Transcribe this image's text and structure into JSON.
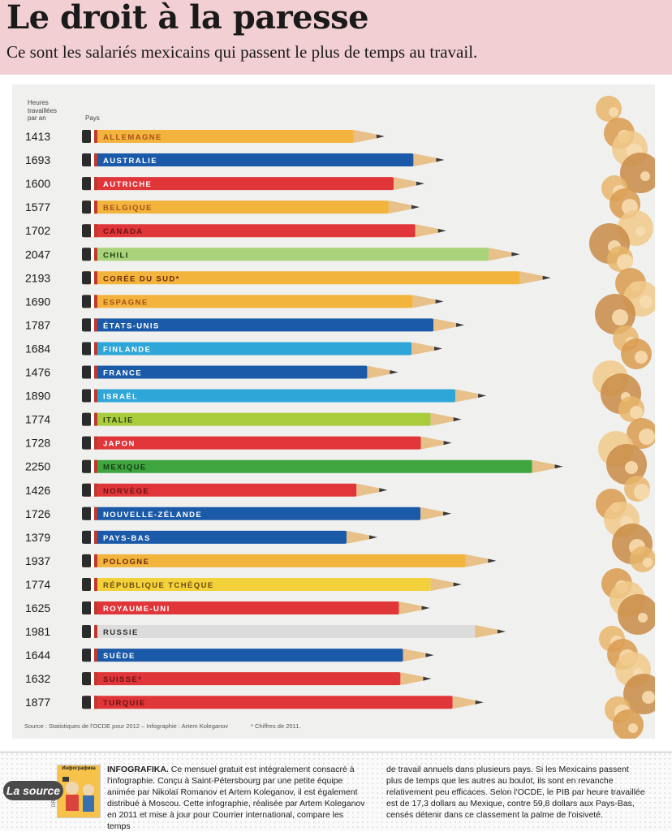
{
  "header": {
    "title": "Le droit à la paresse",
    "subtitle": "Ce sont les salariés mexicains qui passent le plus de temps au travail."
  },
  "chart_data": {
    "type": "bar",
    "title": "Le droit à la paresse",
    "subtitle": "Ce sont les salariés mexicains qui passent le plus de temps au travail.",
    "xlabel": "Heures travaillées par an",
    "ylabel": "Pays",
    "categories": [
      "ALLEMAGNE",
      "AUSTRALIE",
      "AUTRICHE",
      "BELGIQUE",
      "CANADA",
      "CHILI",
      "CORÉE DU SUD*",
      "ESPAGNE",
      "ÉTATS-UNIS",
      "FINLANDE",
      "FRANCE",
      "ISRAËL",
      "ITALIE",
      "JAPON",
      "MEXIQUE",
      "NORVÈGE",
      "NOUVELLE-ZÉLANDE",
      "PAYS-BAS",
      "POLOGNE",
      "RÉPUBLIQUE TCHÈQUE",
      "ROYAUME-UNI",
      "RUSSIE",
      "SUÈDE",
      "SUISSE*",
      "TURQUIE"
    ],
    "values": [
      1413,
      1693,
      1600,
      1577,
      1702,
      2047,
      2193,
      1690,
      1787,
      1684,
      1476,
      1890,
      1774,
      1728,
      2250,
      1426,
      1726,
      1379,
      1937,
      1774,
      1625,
      1981,
      1644,
      1632,
      1877
    ],
    "colors": [
      "#f2b43c",
      "#1a5aa8",
      "#e0363a",
      "#f2b43c",
      "#e0363a",
      "#a8d37a",
      "#f2b43c",
      "#f2b43c",
      "#1a5aa8",
      "#2ea6d8",
      "#1a5aa8",
      "#2ea6d8",
      "#a8cc3c",
      "#e0363a",
      "#3fa63f",
      "#e0363a",
      "#1a5aa8",
      "#1a5aa8",
      "#f2b43c",
      "#f2d13a",
      "#e0363a",
      "#dcdcdc",
      "#1a5aa8",
      "#e0363a",
      "#e0363a"
    ],
    "label_colors": [
      "#a6501a",
      "#ffffff",
      "#ffffff",
      "#a6501a",
      "#6b1414",
      "#1e3a14",
      "#6b2a10",
      "#a6501a",
      "#ffffff",
      "#ffffff",
      "#ffffff",
      "#ffffff",
      "#2c3a10",
      "#ffffff",
      "#153d15",
      "#6b1414",
      "#ffffff",
      "#ffffff",
      "#6b2a10",
      "#6b4a10",
      "#ffffff",
      "#333333",
      "#ffffff",
      "#6b1414",
      "#6b1414"
    ],
    "axis_header": [
      "Heures",
      "travaillées",
      "par an"
    ],
    "category_header": "Pays",
    "source": "Source : Statistiques de l'OCDE pour 2012 – Infographie : Artem Koleganov",
    "footnote": "* Chiffres de 2011."
  },
  "footer": {
    "badge": "La source",
    "thumb_title": "Инфографика",
    "credit": "DR",
    "lead": "INFOGRAFIKA.",
    "col1": "Ce mensuel gratuit est intégralement consacré à l'infographie. Conçu à Saint-Pétersbourg par une petite équipe animée par Nikolaï Romanov et Artem Koleganov, il est également distribué à Moscou. Cette infographie, réalisée par Artem Koleganov en 2011 et mise à jour pour Courrier international, compare les temps",
    "col2": "de travail annuels dans plusieurs pays. Si les Mexicains passent plus de temps que les autres au boulot, ils sont en revanche relativement peu efficaces. Selon l'OCDE, le PIB par heure travaillée est de 17,3 dollars au Mexique, contre 59,8 dollars aux Pays-Bas, censés détenir dans ce classement la palme de l'oisiveté."
  }
}
